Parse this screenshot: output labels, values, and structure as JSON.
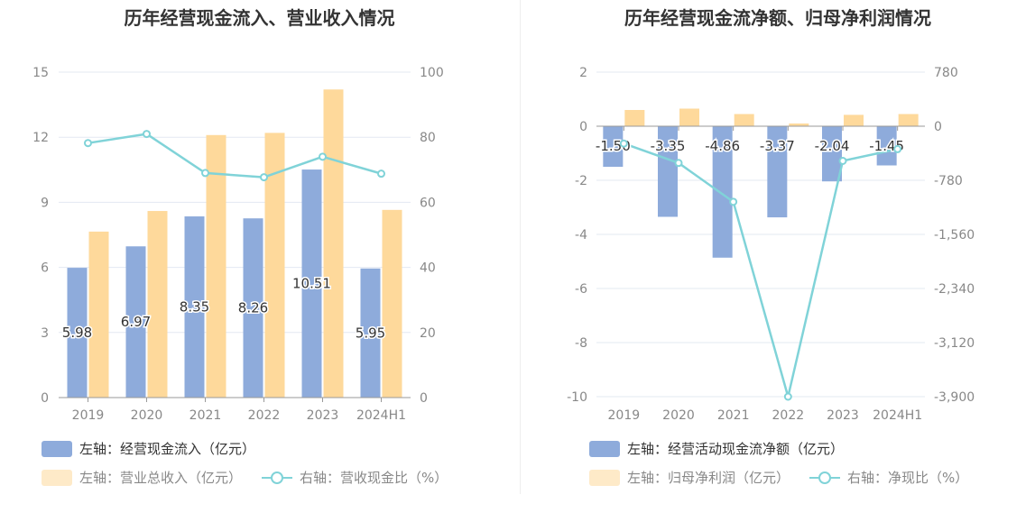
{
  "colors": {
    "bar_primary": "#8eabdb",
    "bar_secondary": "#fed99b",
    "line": "#80d3d8",
    "grid": "#e3e8f2",
    "axis_text": "#888888",
    "label_text": "#333333"
  },
  "chart_data": [
    {
      "type": "bar",
      "title": "历年经营现金流入、营业收入情况",
      "categories": [
        "2019",
        "2020",
        "2021",
        "2022",
        "2023",
        "2024H1"
      ],
      "y_left_ticks": [
        "0",
        "3",
        "6",
        "9",
        "12",
        "15"
      ],
      "y_left_range": [
        0,
        15
      ],
      "y_right_ticks": [
        "0",
        "20",
        "40",
        "60",
        "80",
        "100"
      ],
      "y_right_range": [
        0,
        100
      ],
      "grid": true,
      "legend_position": "bottom-left",
      "series": [
        {
          "name": "左轴：经营现金流入（亿元）",
          "axis": "left",
          "kind": "bar",
          "color": "#8eabdb",
          "values": [
            5.98,
            6.97,
            8.35,
            8.26,
            10.51,
            5.95
          ],
          "labels": [
            "5.98",
            "6.97",
            "8.35",
            "8.26",
            "10.51",
            "5.95"
          ]
        },
        {
          "name": "左轴：营业总收入（亿元）",
          "axis": "left",
          "kind": "bar",
          "color": "#fed99b",
          "values": [
            7.65,
            8.6,
            12.1,
            12.2,
            14.2,
            8.65
          ]
        },
        {
          "name": "右轴：营收现金比（%）",
          "axis": "right",
          "kind": "line",
          "color": "#80d3d8",
          "values": [
            78.2,
            81.0,
            69.0,
            67.7,
            74.0,
            68.8
          ]
        }
      ]
    },
    {
      "type": "bar",
      "title": "历年经营现金流净额、归母净利润情况",
      "categories": [
        "2019",
        "2020",
        "2021",
        "2022",
        "2023",
        "2024H1"
      ],
      "y_left_ticks": [
        "-10",
        "-8",
        "-6",
        "-4",
        "-2",
        "0",
        "2"
      ],
      "y_left_range": [
        -10,
        2
      ],
      "y_right_ticks": [
        "-3,900",
        "-3,120",
        "-2,340",
        "-1,560",
        "-780",
        "0",
        "780"
      ],
      "y_right_range": [
        -3900,
        780
      ],
      "grid": true,
      "legend_position": "bottom-left",
      "series": [
        {
          "name": "左轴：经营活动现金流净额（亿元）",
          "axis": "left",
          "kind": "bar",
          "color": "#8eabdb",
          "values": [
            -1.5,
            -3.35,
            -4.86,
            -3.37,
            -2.04,
            -1.45
          ],
          "labels": [
            "-1.50",
            "-3.35",
            "-4.86",
            "-3.37",
            "-2.04",
            "-1.45"
          ]
        },
        {
          "name": "左轴：归母净利润（亿元）",
          "axis": "left",
          "kind": "bar",
          "color": "#fed99b",
          "values": [
            0.6,
            0.65,
            0.45,
            0.1,
            0.42,
            0.45
          ]
        },
        {
          "name": "右轴：净现比（%）",
          "axis": "right",
          "kind": "line",
          "color": "#80d3d8",
          "values": [
            -250,
            -530,
            -1090,
            -3900,
            -500,
            -330
          ]
        }
      ]
    }
  ]
}
